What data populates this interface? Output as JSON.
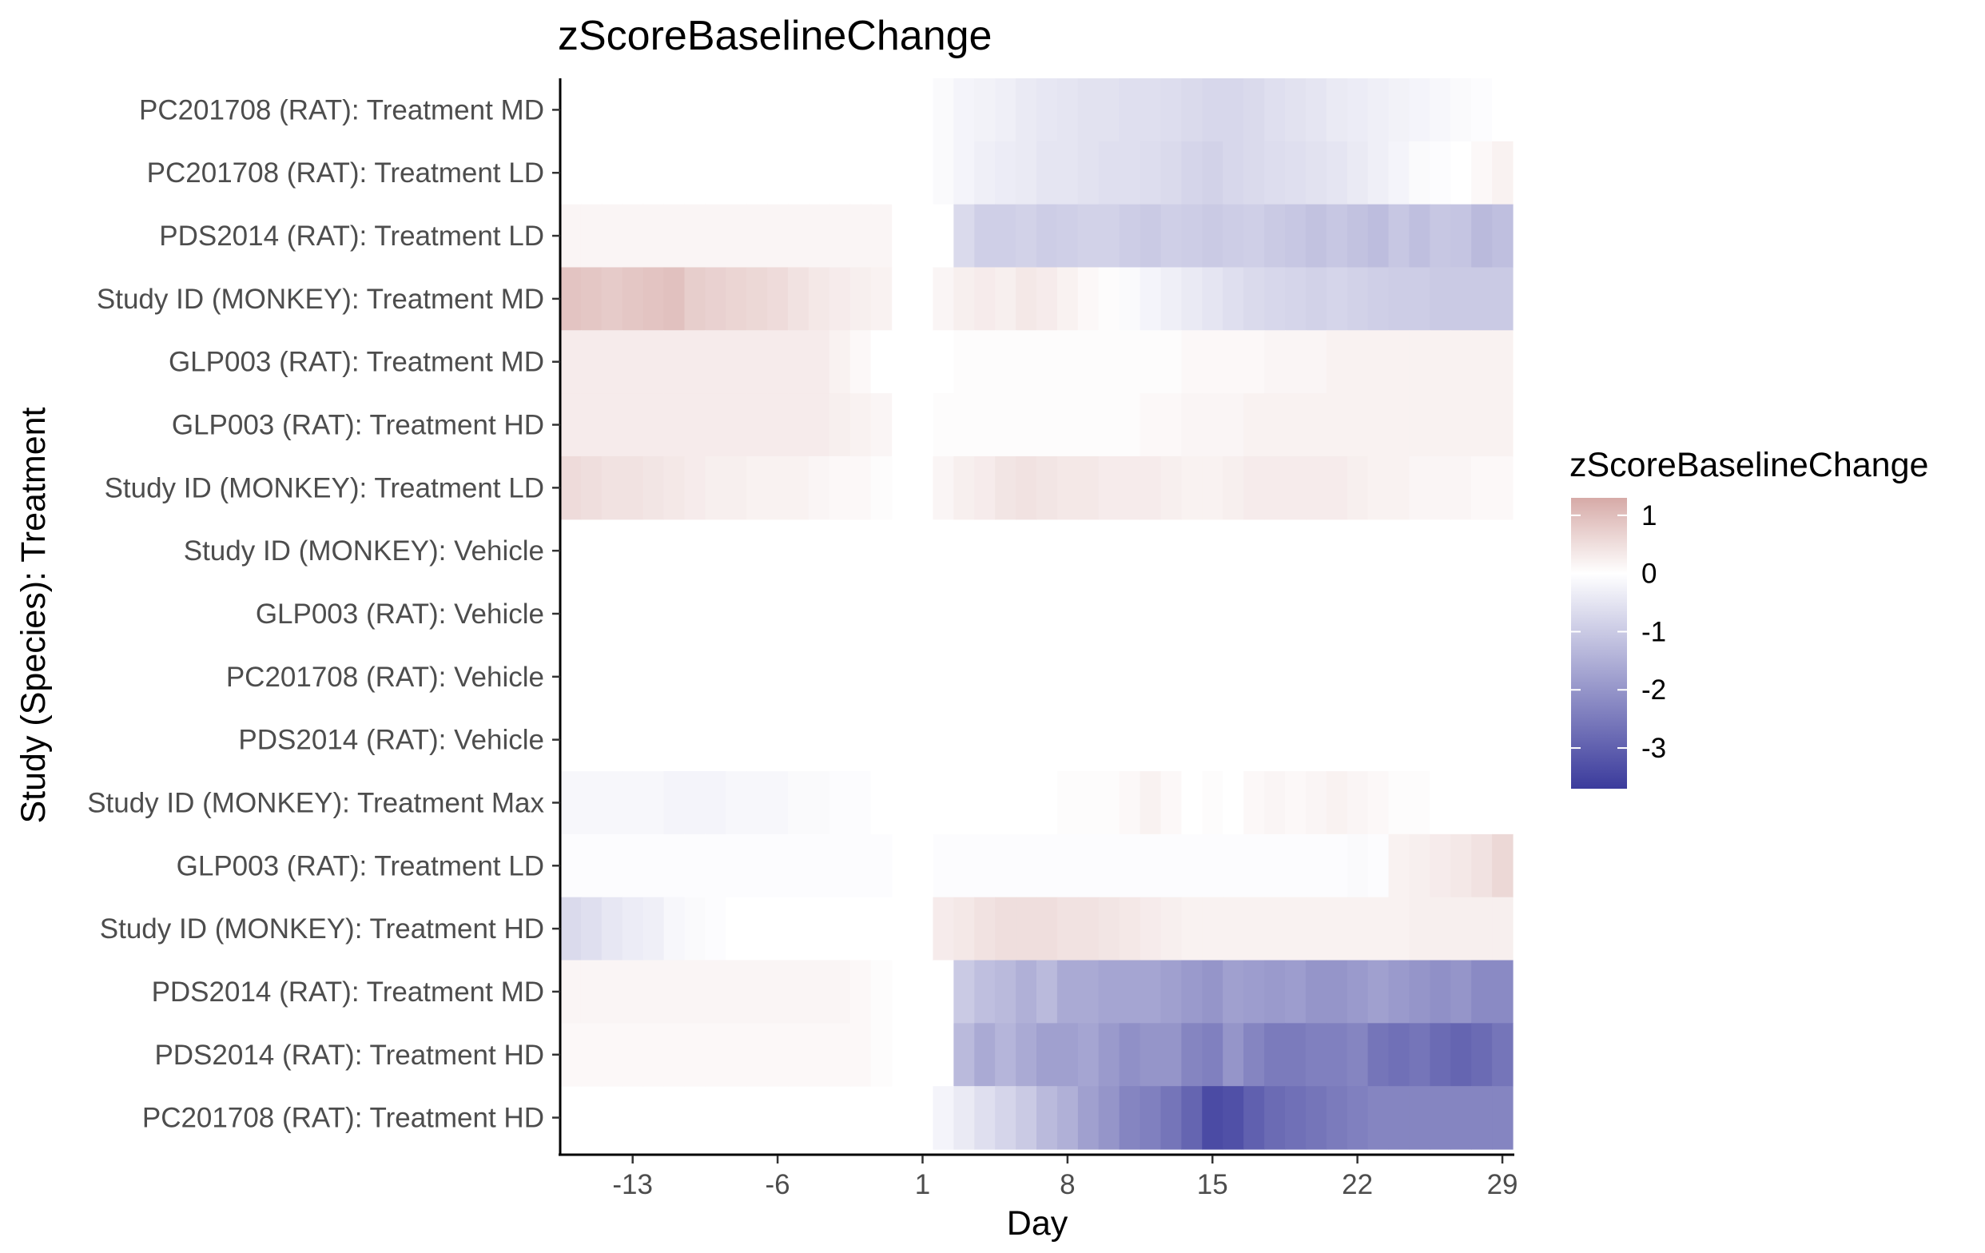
{
  "chart_data": {
    "type": "heatmap",
    "title": "zScoreBaselineChange",
    "xlabel": "Day",
    "ylabel": "Study (Species): Treatment",
    "x_ticks": [
      -13,
      -6,
      1,
      8,
      15,
      22,
      29
    ],
    "xlim": [
      -16.5,
      29.5
    ],
    "grid": false,
    "legend": {
      "title": "zScoreBaselineChange",
      "position": "right",
      "ticks": [
        1,
        0,
        -1,
        -2,
        -3
      ],
      "range": [
        -3.7,
        1.3
      ],
      "low_color": "#3b3b9c",
      "mid_color": "#ffffff",
      "high_color": "#d6aaa7"
    },
    "rows": [
      {
        "label": "PC201708 (RAT): Treatment MD",
        "pre": null,
        "post": [
          -0.1,
          -0.2,
          -0.25,
          -0.3,
          -0.4,
          -0.45,
          -0.5,
          -0.55,
          -0.55,
          -0.6,
          -0.6,
          -0.65,
          -0.7,
          -0.75,
          -0.75,
          -0.7,
          -0.6,
          -0.55,
          -0.5,
          -0.4,
          -0.35,
          -0.3,
          -0.25,
          -0.2,
          -0.15,
          -0.1,
          -0.05,
          0
        ]
      },
      {
        "label": "PC201708 (RAT): Treatment LD",
        "pre": null,
        "post": [
          -0.1,
          -0.2,
          -0.3,
          -0.35,
          -0.4,
          -0.5,
          -0.5,
          -0.55,
          -0.6,
          -0.6,
          -0.65,
          -0.7,
          -0.8,
          -0.85,
          -0.75,
          -0.7,
          -0.65,
          -0.6,
          -0.55,
          -0.5,
          -0.4,
          -0.3,
          -0.2,
          -0.1,
          -0.05,
          0,
          0.1,
          0.2
        ]
      },
      {
        "label": "PDS2014 (RAT): Treatment LD",
        "pre": [
          0.15,
          0.15,
          0.15,
          0.15,
          0.15,
          0.15,
          0.15,
          0.15,
          0.15,
          0.15,
          0.15,
          0.15,
          0.15,
          0.15,
          0.15,
          0.15
        ],
        "post": [
          0,
          -0.7,
          -0.9,
          -0.9,
          -0.85,
          -0.95,
          -0.9,
          -0.85,
          -0.85,
          -0.95,
          -1.0,
          -0.9,
          -0.95,
          -1.0,
          -0.95,
          -0.9,
          -1.0,
          -1.05,
          -1.15,
          -1.05,
          -1.15,
          -1.25,
          -1.05,
          -1.2,
          -1.05,
          -1.1,
          -1.3,
          -1.2
        ]
      },
      {
        "label": "Study ID (MONKEY): Treatment MD",
        "pre": [
          0.9,
          0.85,
          0.8,
          0.85,
          0.9,
          0.95,
          0.75,
          0.7,
          0.65,
          0.6,
          0.55,
          0.45,
          0.35,
          0.3,
          0.25,
          0.2
        ],
        "post": [
          0.15,
          0.25,
          0.3,
          0.25,
          0.35,
          0.3,
          0.2,
          0.1,
          0.05,
          -0.1,
          -0.2,
          -0.3,
          -0.4,
          -0.5,
          -0.6,
          -0.7,
          -0.75,
          -0.8,
          -0.85,
          -0.8,
          -0.85,
          -0.9,
          -0.95,
          -0.95,
          -1.0,
          -1.0,
          -1.0,
          -1.0
        ]
      },
      {
        "label": "GLP003 (RAT): Treatment MD",
        "pre": [
          0.3,
          0.3,
          0.3,
          0.3,
          0.3,
          0.3,
          0.3,
          0.3,
          0.3,
          0.3,
          0.3,
          0.3,
          0.3,
          0.2,
          0.1,
          0
        ],
        "post": [
          0,
          0.05,
          0.05,
          0.05,
          0.05,
          0.05,
          0.05,
          0.05,
          0.05,
          0.05,
          0.05,
          0.05,
          0.1,
          0.1,
          0.1,
          0.1,
          0.15,
          0.15,
          0.15,
          0.2,
          0.2,
          0.2,
          0.2,
          0.2,
          0.2,
          0.2,
          0.2,
          0.2
        ]
      },
      {
        "label": "GLP003 (RAT): Treatment HD",
        "pre": [
          0.3,
          0.3,
          0.3,
          0.3,
          0.3,
          0.3,
          0.3,
          0.3,
          0.3,
          0.3,
          0.3,
          0.3,
          0.3,
          0.25,
          0.2,
          0.15
        ],
        "post": [
          0.05,
          0.05,
          0.05,
          0.05,
          0.05,
          0.05,
          0.05,
          0.05,
          0.05,
          0.05,
          0.1,
          0.1,
          0.15,
          0.15,
          0.15,
          0.2,
          0.2,
          0.2,
          0.2,
          0.2,
          0.2,
          0.2,
          0.2,
          0.2,
          0.2,
          0.2,
          0.2,
          0.2
        ]
      },
      {
        "label": "Study ID (MONKEY): Treatment LD",
        "pre": [
          0.55,
          0.5,
          0.45,
          0.45,
          0.4,
          0.35,
          0.3,
          0.25,
          0.25,
          0.2,
          0.2,
          0.2,
          0.15,
          0.1,
          0.1,
          0.05
        ],
        "post": [
          0.15,
          0.25,
          0.3,
          0.4,
          0.45,
          0.4,
          0.35,
          0.35,
          0.3,
          0.3,
          0.3,
          0.25,
          0.2,
          0.2,
          0.25,
          0.3,
          0.3,
          0.3,
          0.3,
          0.3,
          0.25,
          0.2,
          0.2,
          0.15,
          0.15,
          0.15,
          0.1,
          0.1
        ]
      },
      {
        "label": "Study ID (MONKEY): Vehicle",
        "pre": null,
        "post": null
      },
      {
        "label": "GLP003 (RAT): Vehicle",
        "pre": null,
        "post": null
      },
      {
        "label": "PC201708 (RAT): Vehicle",
        "pre": null,
        "post": null
      },
      {
        "label": "PDS2014 (RAT): Vehicle",
        "pre": null,
        "post": null
      },
      {
        "label": "Study ID (MONKEY): Treatment Max",
        "pre": [
          -0.15,
          -0.15,
          -0.15,
          -0.15,
          -0.15,
          -0.2,
          -0.2,
          -0.2,
          -0.15,
          -0.15,
          -0.15,
          -0.1,
          -0.1,
          -0.05,
          -0.05,
          0
        ],
        "post": [
          0,
          0,
          0,
          0,
          0,
          0,
          0.05,
          0.05,
          0.05,
          0.1,
          0.2,
          0.1,
          0,
          0.05,
          0,
          0.1,
          0.15,
          0.1,
          0.15,
          0.2,
          0.15,
          0.1,
          0.05,
          0.05,
          0,
          0,
          0,
          0
        ]
      },
      {
        "label": "GLP003 (RAT): Treatment LD",
        "pre": [
          -0.05,
          -0.05,
          -0.05,
          -0.05,
          -0.05,
          -0.05,
          -0.05,
          -0.05,
          -0.05,
          -0.05,
          -0.05,
          -0.05,
          -0.05,
          -0.05,
          -0.05,
          -0.05
        ],
        "post": [
          -0.05,
          -0.05,
          -0.05,
          -0.05,
          -0.05,
          -0.05,
          -0.05,
          -0.05,
          -0.05,
          -0.05,
          -0.05,
          -0.05,
          -0.05,
          -0.05,
          -0.05,
          -0.05,
          -0.05,
          -0.05,
          -0.05,
          -0.05,
          -0.1,
          -0.05,
          0.2,
          0.25,
          0.3,
          0.35,
          0.45,
          0.6
        ]
      },
      {
        "label": "Study ID (MONKEY): Treatment HD",
        "pre": [
          -0.7,
          -0.6,
          -0.45,
          -0.35,
          -0.3,
          -0.15,
          -0.1,
          -0.05,
          0,
          0,
          0,
          0,
          0,
          0,
          0,
          0
        ],
        "post": [
          0.3,
          0.35,
          0.45,
          0.5,
          0.5,
          0.5,
          0.45,
          0.45,
          0.4,
          0.35,
          0.3,
          0.25,
          0.2,
          0.2,
          0.2,
          0.2,
          0.2,
          0.2,
          0.2,
          0.2,
          0.2,
          0.2,
          0.2,
          0.25,
          0.25,
          0.25,
          0.25,
          0.25
        ]
      },
      {
        "label": "PDS2014 (RAT): Treatment MD",
        "pre": [
          0.15,
          0.15,
          0.15,
          0.15,
          0.15,
          0.15,
          0.15,
          0.15,
          0.15,
          0.15,
          0.15,
          0.15,
          0.15,
          0.15,
          0.1,
          0.05
        ],
        "post": [
          0,
          -1.0,
          -1.2,
          -1.3,
          -1.5,
          -1.3,
          -1.6,
          -1.6,
          -1.7,
          -1.7,
          -1.7,
          -1.8,
          -1.9,
          -2.0,
          -1.8,
          -1.85,
          -1.9,
          -1.85,
          -2.0,
          -2.0,
          -1.9,
          -1.8,
          -1.9,
          -2.0,
          -2.1,
          -2.0,
          -2.2,
          -2.2
        ]
      },
      {
        "label": "PDS2014 (RAT): Treatment HD",
        "pre": [
          0.1,
          0.1,
          0.1,
          0.1,
          0.1,
          0.1,
          0.1,
          0.1,
          0.1,
          0.1,
          0.1,
          0.1,
          0.1,
          0.1,
          0.1,
          0.05
        ],
        "post": [
          0,
          -1.3,
          -1.6,
          -1.4,
          -1.6,
          -1.8,
          -1.8,
          -1.7,
          -1.9,
          -2.1,
          -2.0,
          -2.0,
          -2.3,
          -2.4,
          -2.0,
          -2.3,
          -2.5,
          -2.5,
          -2.4,
          -2.4,
          -2.3,
          -2.6,
          -2.7,
          -2.6,
          -2.8,
          -2.9,
          -2.8,
          -2.6
        ]
      },
      {
        "label": "PC201708 (RAT): Treatment HD",
        "pre": null,
        "post": [
          -0.2,
          -0.4,
          -0.6,
          -0.8,
          -1.0,
          -1.3,
          -1.5,
          -1.8,
          -2.0,
          -2.3,
          -2.4,
          -2.6,
          -2.9,
          -3.4,
          -3.3,
          -3.0,
          -2.8,
          -2.7,
          -2.6,
          -2.5,
          -2.4,
          -2.3,
          -2.3,
          -2.3,
          -2.3,
          -2.3,
          -2.3,
          -2.3
        ]
      }
    ]
  }
}
